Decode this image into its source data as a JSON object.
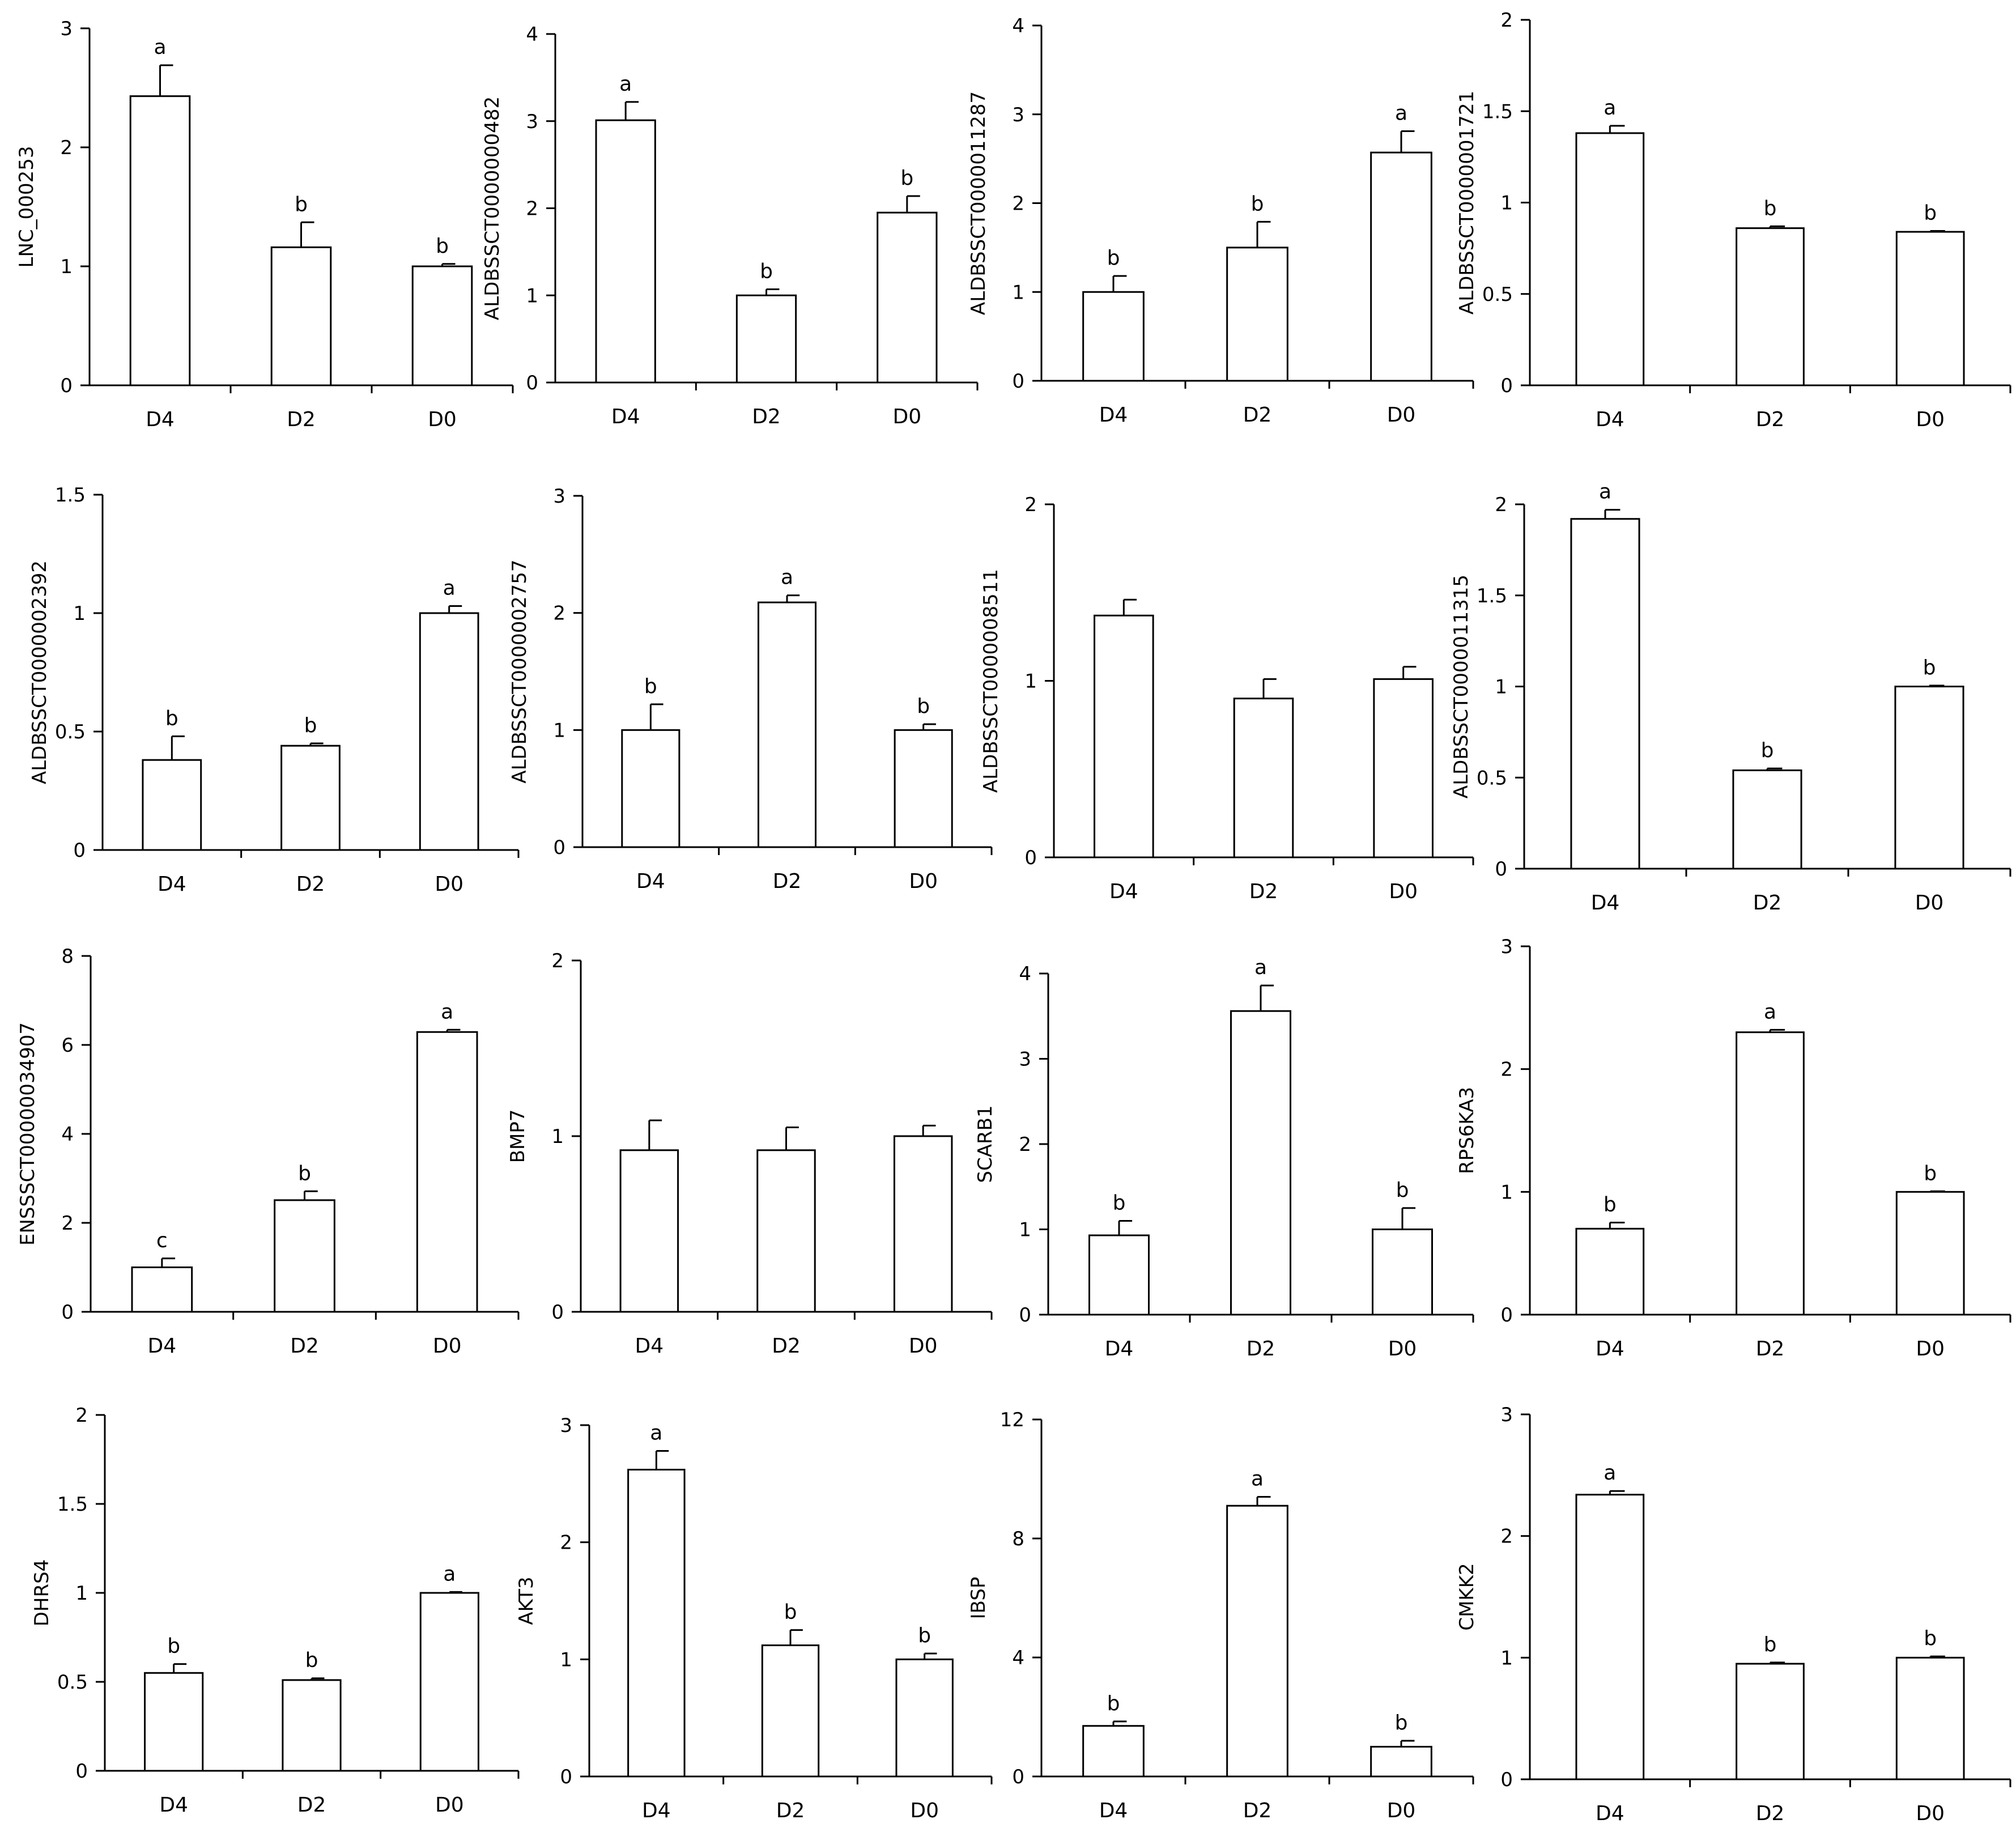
{
  "chart_data": [
    {
      "type": "bar",
      "ylabel": "LNC_000253",
      "categories": [
        "D4",
        "D2",
        "D0"
      ],
      "ylim": [
        0,
        3
      ],
      "yticks": [
        0,
        1,
        2,
        3
      ],
      "values": [
        2.43,
        1.16,
        1.0
      ],
      "errors": [
        0.26,
        0.21,
        0.02
      ],
      "letters": [
        "a",
        "b",
        "b"
      ]
    },
    {
      "type": "bar",
      "ylabel": "ALDBSSCT0000000482",
      "categories": [
        "D4",
        "D2",
        "D0"
      ],
      "ylim": [
        0,
        4
      ],
      "yticks": [
        0,
        1,
        2,
        3,
        4
      ],
      "values": [
        3.01,
        1.0,
        1.95
      ],
      "errors": [
        0.21,
        0.07,
        0.19
      ],
      "letters": [
        "a",
        "b",
        "b"
      ]
    },
    {
      "type": "bar",
      "ylabel": "ALDBSSCT0000011287",
      "categories": [
        "D4",
        "D2",
        "D0"
      ],
      "ylim": [
        0,
        4
      ],
      "yticks": [
        0,
        1,
        2,
        3,
        4
      ],
      "values": [
        1.0,
        1.5,
        2.57
      ],
      "errors": [
        0.18,
        0.29,
        0.24
      ],
      "letters": [
        "b",
        "b",
        "a"
      ]
    },
    {
      "type": "bar",
      "ylabel": "ALDBSSCT0000001721",
      "categories": [
        "D4",
        "D2",
        "D0"
      ],
      "ylim": [
        0,
        2
      ],
      "yticks": [
        0,
        0.5,
        1,
        1.5,
        2
      ],
      "ytick_labels": [
        "0",
        "0.5",
        "1",
        "1.5",
        "2"
      ],
      "values": [
        1.38,
        0.86,
        0.84
      ],
      "errors": [
        0.04,
        0.01,
        0.005
      ],
      "letters": [
        "a",
        "b",
        "b"
      ]
    },
    {
      "type": "bar",
      "ylabel": "ALDBSSCT0000002392",
      "categories": [
        "D4",
        "D2",
        "D0"
      ],
      "ylim": [
        0,
        1.5
      ],
      "yticks": [
        0,
        0.5,
        1,
        1.5
      ],
      "ytick_labels": [
        "0",
        "0.5",
        "1",
        "1.5"
      ],
      "values": [
        0.38,
        0.44,
        1.0
      ],
      "errors": [
        0.1,
        0.01,
        0.03
      ],
      "letters": [
        "b",
        "b",
        "a"
      ]
    },
    {
      "type": "bar",
      "ylabel": "ALDBSSCT0000002757",
      "categories": [
        "D4",
        "D2",
        "D0"
      ],
      "ylim": [
        0,
        3
      ],
      "yticks": [
        0,
        1,
        2,
        3
      ],
      "values": [
        1.0,
        2.09,
        1.0
      ],
      "errors": [
        0.22,
        0.06,
        0.05
      ],
      "letters": [
        "b",
        "a",
        "b"
      ]
    },
    {
      "type": "bar",
      "ylabel": "ALDBSSCT0000008511",
      "categories": [
        "D4",
        "D2",
        "D0"
      ],
      "ylim": [
        0,
        2
      ],
      "yticks": [
        0,
        1,
        2
      ],
      "values": [
        1.37,
        0.9,
        1.01
      ],
      "errors": [
        0.09,
        0.11,
        0.07
      ],
      "letters": [
        "",
        "",
        ""
      ]
    },
    {
      "type": "bar",
      "ylabel": "ALDBSSCT0000011315",
      "categories": [
        "D4",
        "D2",
        "D0"
      ],
      "ylim": [
        0,
        2
      ],
      "yticks": [
        0,
        0.5,
        1,
        1.5,
        2
      ],
      "ytick_labels": [
        "0",
        "0.5",
        "1",
        "1.5",
        "2"
      ],
      "values": [
        1.92,
        0.54,
        1.0
      ],
      "errors": [
        0.05,
        0.01,
        0.005
      ],
      "letters": [
        "a",
        "b",
        "b"
      ]
    },
    {
      "type": "bar",
      "ylabel": "ENSSSCT00000034907",
      "categories": [
        "D4",
        "D2",
        "D0"
      ],
      "ylim": [
        0,
        8
      ],
      "yticks": [
        0,
        2,
        4,
        6,
        8
      ],
      "values": [
        1.0,
        2.51,
        6.29
      ],
      "errors": [
        0.2,
        0.2,
        0.05
      ],
      "letters": [
        "c",
        "b",
        "a"
      ]
    },
    {
      "type": "bar",
      "ylabel": "BMP7",
      "categories": [
        "D4",
        "D2",
        "D0"
      ],
      "ylim": [
        0,
        2
      ],
      "yticks": [
        0,
        1,
        2
      ],
      "values": [
        0.92,
        0.92,
        1.0
      ],
      "errors": [
        0.17,
        0.13,
        0.06
      ],
      "letters": [
        "",
        "",
        ""
      ]
    },
    {
      "type": "bar",
      "ylabel": "SCARB1",
      "categories": [
        "D4",
        "D2",
        "D0"
      ],
      "ylim": [
        0,
        4
      ],
      "yticks": [
        0,
        1,
        2,
        3,
        4
      ],
      "values": [
        0.93,
        3.56,
        1.0
      ],
      "errors": [
        0.17,
        0.3,
        0.25
      ],
      "letters": [
        "b",
        "a",
        "b"
      ]
    },
    {
      "type": "bar",
      "ylabel": "RPS6KA3",
      "categories": [
        "D4",
        "D2",
        "D0"
      ],
      "ylim": [
        0,
        3
      ],
      "yticks": [
        0,
        1,
        2,
        3
      ],
      "values": [
        0.7,
        2.3,
        1.0
      ],
      "errors": [
        0.05,
        0.02,
        0.005
      ],
      "letters": [
        "b",
        "a",
        "b"
      ]
    },
    {
      "type": "bar",
      "ylabel": "DHRS4",
      "categories": [
        "D4",
        "D2",
        "D0"
      ],
      "ylim": [
        0,
        2
      ],
      "yticks": [
        0,
        0.5,
        1,
        1.5,
        2
      ],
      "ytick_labels": [
        "0",
        "0.5",
        "1",
        "1.5",
        "2"
      ],
      "values": [
        0.55,
        0.51,
        1.0
      ],
      "errors": [
        0.05,
        0.01,
        0.005
      ],
      "letters": [
        "b",
        "b",
        "a"
      ]
    },
    {
      "type": "bar",
      "ylabel": "AKT3",
      "categories": [
        "D4",
        "D2",
        "D0"
      ],
      "ylim": [
        0,
        3
      ],
      "yticks": [
        0,
        1,
        2,
        3
      ],
      "values": [
        2.62,
        1.12,
        1.0
      ],
      "errors": [
        0.16,
        0.13,
        0.05
      ],
      "letters": [
        "a",
        "b",
        "b"
      ]
    },
    {
      "type": "bar",
      "ylabel": "IBSP",
      "categories": [
        "D4",
        "D2",
        "D0"
      ],
      "ylim": [
        0,
        12
      ],
      "yticks": [
        0,
        4,
        8,
        12
      ],
      "values": [
        1.7,
        9.1,
        1.0
      ],
      "errors": [
        0.15,
        0.3,
        0.2
      ],
      "letters": [
        "b",
        "a",
        "b"
      ]
    },
    {
      "type": "bar",
      "ylabel": "CMKK2",
      "categories": [
        "D4",
        "D2",
        "D0"
      ],
      "ylim": [
        0,
        3
      ],
      "yticks": [
        0,
        1,
        2,
        3
      ],
      "values": [
        2.34,
        0.95,
        1.0
      ],
      "errors": [
        0.03,
        0.01,
        0.01
      ],
      "letters": [
        "a",
        "b",
        "b"
      ]
    }
  ]
}
